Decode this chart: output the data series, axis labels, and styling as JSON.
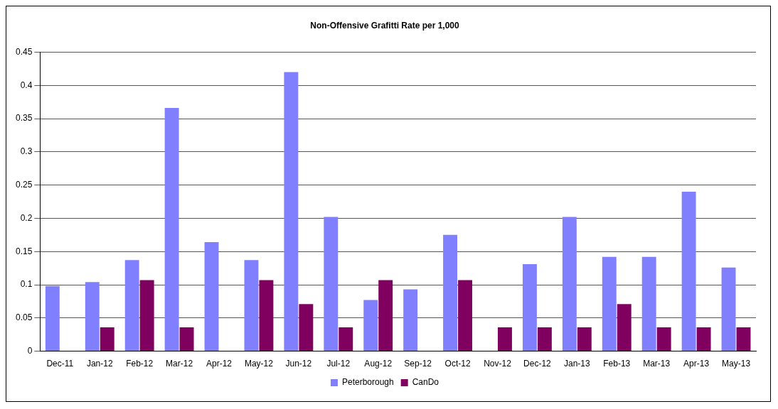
{
  "chart_data": {
    "type": "bar",
    "title": "Non-Offensive Grafitti Rate per 1,000",
    "categories": [
      "Dec-11",
      "Jan-12",
      "Feb-12",
      "Mar-12",
      "Apr-12",
      "May-12",
      "Jun-12",
      "Jul-12",
      "Aug-12",
      "Sep-12",
      "Oct-12",
      "Nov-12",
      "Dec-12",
      "Jan-13",
      "Feb-13",
      "Mar-13",
      "Apr-13",
      "May-13"
    ],
    "series": [
      {
        "name": "Peterborough",
        "color": "#8080ff",
        "values": [
          0.098,
          0.104,
          0.137,
          0.366,
          0.164,
          0.137,
          0.42,
          0.202,
          0.077,
          0.093,
          0.175,
          0,
          0.131,
          0.202,
          0.142,
          0.142,
          0.24,
          0.126
        ]
      },
      {
        "name": "CanDo",
        "color": "#800060",
        "values": [
          0,
          0.036,
          0.107,
          0.036,
          0,
          0.107,
          0.071,
          0.036,
          0.107,
          0,
          0.107,
          0.036,
          0.036,
          0.036,
          0.071,
          0.036,
          0.036,
          0.036
        ]
      }
    ],
    "ylim": [
      0,
      0.45
    ],
    "yticks": [
      0,
      0.05,
      0.1,
      0.15,
      0.2,
      0.25,
      0.3,
      0.35,
      0.4,
      0.45
    ],
    "grid": "y",
    "legend": "bottom"
  }
}
